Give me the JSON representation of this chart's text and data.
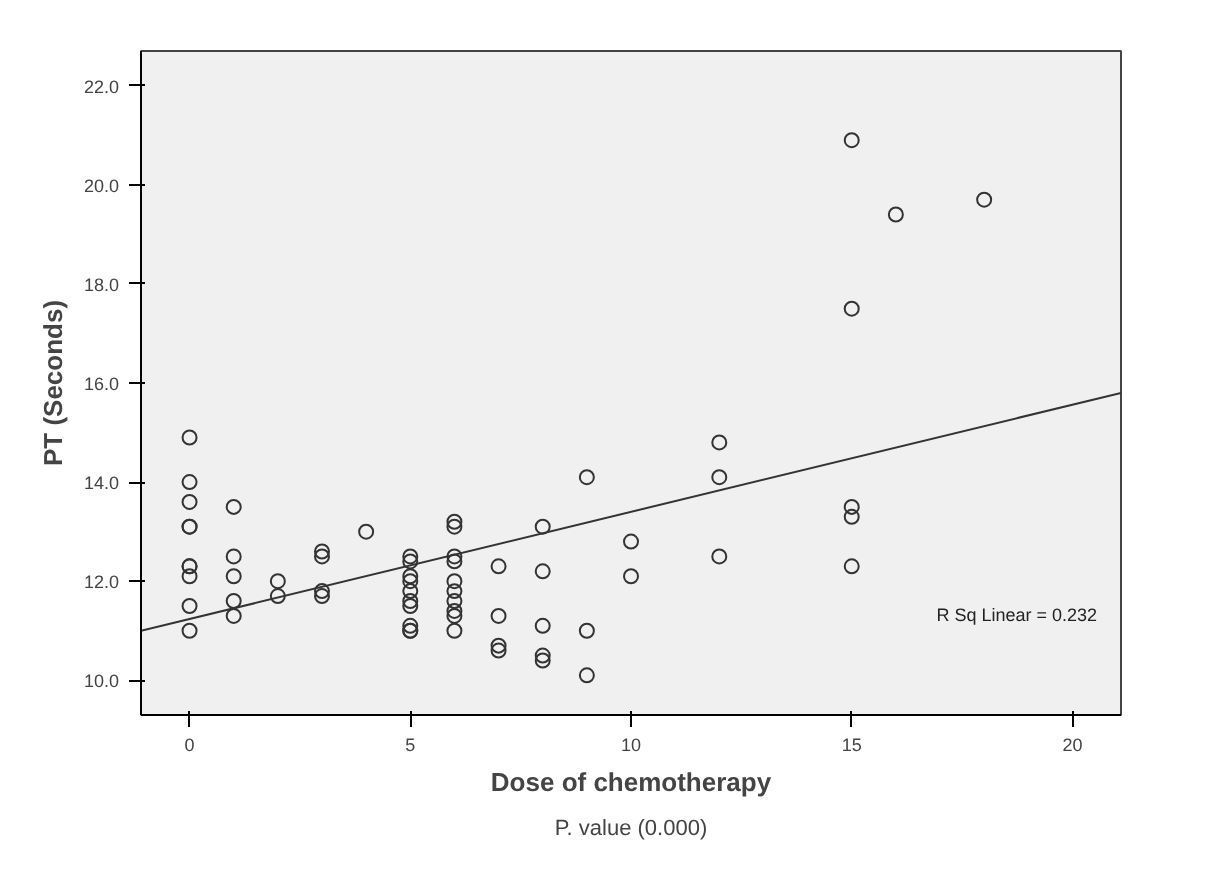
{
  "chart_data": {
    "type": "scatter",
    "xlabel": "Dose of chemotherapy",
    "ylabel": "PT (Seconds)",
    "annotations": [
      "R Sq Linear = 0.232",
      "P. value (0.000)"
    ],
    "xlim": [
      -1.1,
      21.1
    ],
    "ylim": [
      9.3,
      22.7
    ],
    "xticks": [
      0,
      5,
      10,
      15,
      20
    ],
    "yticks": [
      {
        "value": 10,
        "label": "10.0"
      },
      {
        "value": 12,
        "label": "12.0"
      },
      {
        "value": 14,
        "label": "14.0"
      },
      {
        "value": 16,
        "label": "16.0"
      },
      {
        "value": 18,
        "label": "18.0"
      },
      {
        "value": 20,
        "label": "20.0"
      },
      {
        "value": 22,
        "label": "22.0"
      }
    ],
    "grid": false,
    "series": [
      {
        "marker": "circle",
        "color": "#333333",
        "x": [
          0,
          0,
          0,
          0,
          0,
          0,
          0,
          0,
          0,
          0,
          1,
          1,
          1,
          1,
          1,
          2,
          2,
          3,
          3,
          3,
          3,
          4,
          5,
          5,
          5,
          5,
          5,
          5,
          5,
          5,
          5,
          5,
          6,
          6,
          6,
          6,
          6,
          6,
          6,
          6,
          6,
          6,
          7,
          7,
          7,
          7,
          8,
          8,
          8,
          8,
          8,
          9,
          9,
          9,
          10,
          10,
          12,
          12,
          12,
          15,
          15,
          15,
          15,
          15,
          16,
          18
        ],
        "values": [
          14.9,
          14.0,
          13.6,
          13.1,
          13.1,
          12.3,
          12.3,
          12.1,
          11.5,
          11.0,
          13.5,
          12.5,
          12.1,
          11.6,
          11.3,
          12.0,
          11.7,
          12.6,
          12.5,
          11.8,
          11.7,
          13.0,
          12.5,
          12.4,
          12.1,
          12.0,
          11.8,
          11.6,
          11.5,
          11.1,
          11.0,
          11.0,
          13.2,
          13.1,
          12.5,
          12.4,
          12.0,
          11.8,
          11.6,
          11.4,
          11.3,
          11.0,
          12.3,
          11.3,
          10.7,
          10.6,
          13.1,
          12.2,
          11.1,
          10.5,
          10.4,
          14.1,
          11.0,
          10.1,
          12.8,
          12.1,
          14.8,
          14.1,
          12.5,
          20.9,
          17.5,
          13.5,
          13.3,
          12.3,
          19.4,
          19.7
        ]
      },
      {
        "type": "line",
        "marker": "none",
        "color": "#333333",
        "x": [
          -1.1,
          21.1
        ],
        "values": [
          11.0,
          15.8
        ]
      }
    ]
  }
}
